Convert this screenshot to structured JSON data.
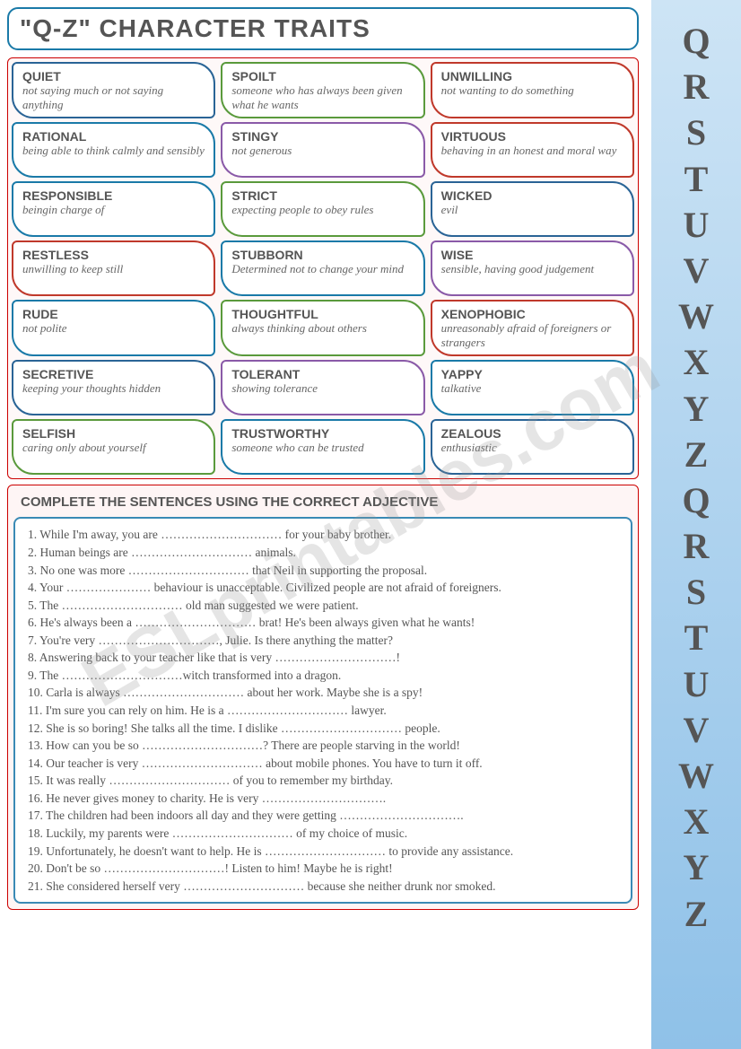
{
  "title": "\"Q-Z\" CHARACTER TRAITS",
  "trait_colors": [
    "#2a6496",
    "#5a9a3c",
    "#c0392b",
    "#1a7aa8",
    "#8a5aa8",
    "#c0392b",
    "#1a7aa8",
    "#5a9a3c",
    "#2a6496",
    "#c0392b",
    "#1a7aa8",
    "#8a5aa8",
    "#1a7aa8",
    "#5a9a3c",
    "#c0392b",
    "#2a6496",
    "#8a5aa8",
    "#1a7aa8",
    "#5a9a3c",
    "#1a7aa8",
    "#2a6496"
  ],
  "traits": [
    {
      "word": "QUIET",
      "def": "not saying much or not saying anything"
    },
    {
      "word": "SPOILT",
      "def": "someone who has always been given what he wants"
    },
    {
      "word": "UNWILLING",
      "def": "not wanting to do something"
    },
    {
      "word": "RATIONAL",
      "def": "being able to think calmly and sensibly"
    },
    {
      "word": "STINGY",
      "def": "not generous"
    },
    {
      "word": "VIRTUOUS",
      "def": "behaving in an honest and moral way"
    },
    {
      "word": "RESPONSIBLE",
      "def": "beingin charge of"
    },
    {
      "word": "STRICT",
      "def": "expecting people to obey rules"
    },
    {
      "word": "WICKED",
      "def": "evil"
    },
    {
      "word": "RESTLESS",
      "def": "unwilling to keep still"
    },
    {
      "word": "STUBBORN",
      "def": "Determined not to change your mind"
    },
    {
      "word": "WISE",
      "def": "sensible, having good judgement"
    },
    {
      "word": "RUDE",
      "def": "not polite"
    },
    {
      "word": "THOUGHTFUL",
      "def": "always thinking about others"
    },
    {
      "word": "XENOPHOBIC",
      "def": "unreasonably afraid of foreigners or strangers"
    },
    {
      "word": "SECRETIVE",
      "def": "keeping your thoughts hidden"
    },
    {
      "word": "TOLERANT",
      "def": "showing tolerance"
    },
    {
      "word": "YAPPY",
      "def": "talkative"
    },
    {
      "word": "SELFISH",
      "def": "caring only about yourself"
    },
    {
      "word": "TRUSTWORTHY",
      "def": "someone who can be trusted"
    },
    {
      "word": "ZEALOUS",
      "def": "enthusiastic"
    }
  ],
  "exercise_title": "COMPLETE THE SENTENCES USING THE CORRECT ADJECTIVE",
  "sentences": [
    "1. While I'm away, you are ………………………… for your baby brother.",
    "2. Human beings are ………………………… animals.",
    "3. No one was more ………………………… that Neil in supporting the proposal.",
    "4. Your ………………… behaviour is unacceptable. Civilized people are not afraid of foreigners.",
    "5. The ………………………… old man suggested we were patient.",
    "6. He's always been a ………………………… brat! He's been always given what he wants!",
    "7. You're very …………………………, Julie. Is there anything the matter?",
    "8. Answering back to your teacher like that is very …………………………!",
    "9. The …………………………witch transformed into a dragon.",
    "10. Carla is always ………………………… about her work. Maybe she is a spy!",
    "11. I'm sure you can rely on him. He is a ………………………… lawyer.",
    "12. She is so boring! She talks all the time. I dislike ………………………… people.",
    "13. How can you be so …………………………? There are people starving in the world!",
    "14. Our teacher is very ………………………… about mobile phones. You have to turn it off.",
    "15. It was really ………………………… of you to remember my birthday.",
    "16. He never gives money to charity. He is very ………………………….",
    "17. The children had been indoors all day and they were getting ………………………….",
    "18. Luckily, my parents were ………………………… of my choice of music.",
    "19. Unfortunately, he doesn't want to help. He is ………………………… to provide any assistance.",
    "20. Don't be so …………………………! Listen to him! Maybe he is right!",
    "21. She considered herself very ………………………… because she neither drunk nor smoked."
  ],
  "side_letters": [
    "Q",
    "R",
    "S",
    "T",
    "U",
    "V",
    "W",
    "X",
    "Y",
    "Z",
    "Q",
    "R",
    "S",
    "T",
    "U",
    "V",
    "W",
    "X",
    "Y",
    "Z"
  ],
  "watermark": "ESLprintables.com"
}
